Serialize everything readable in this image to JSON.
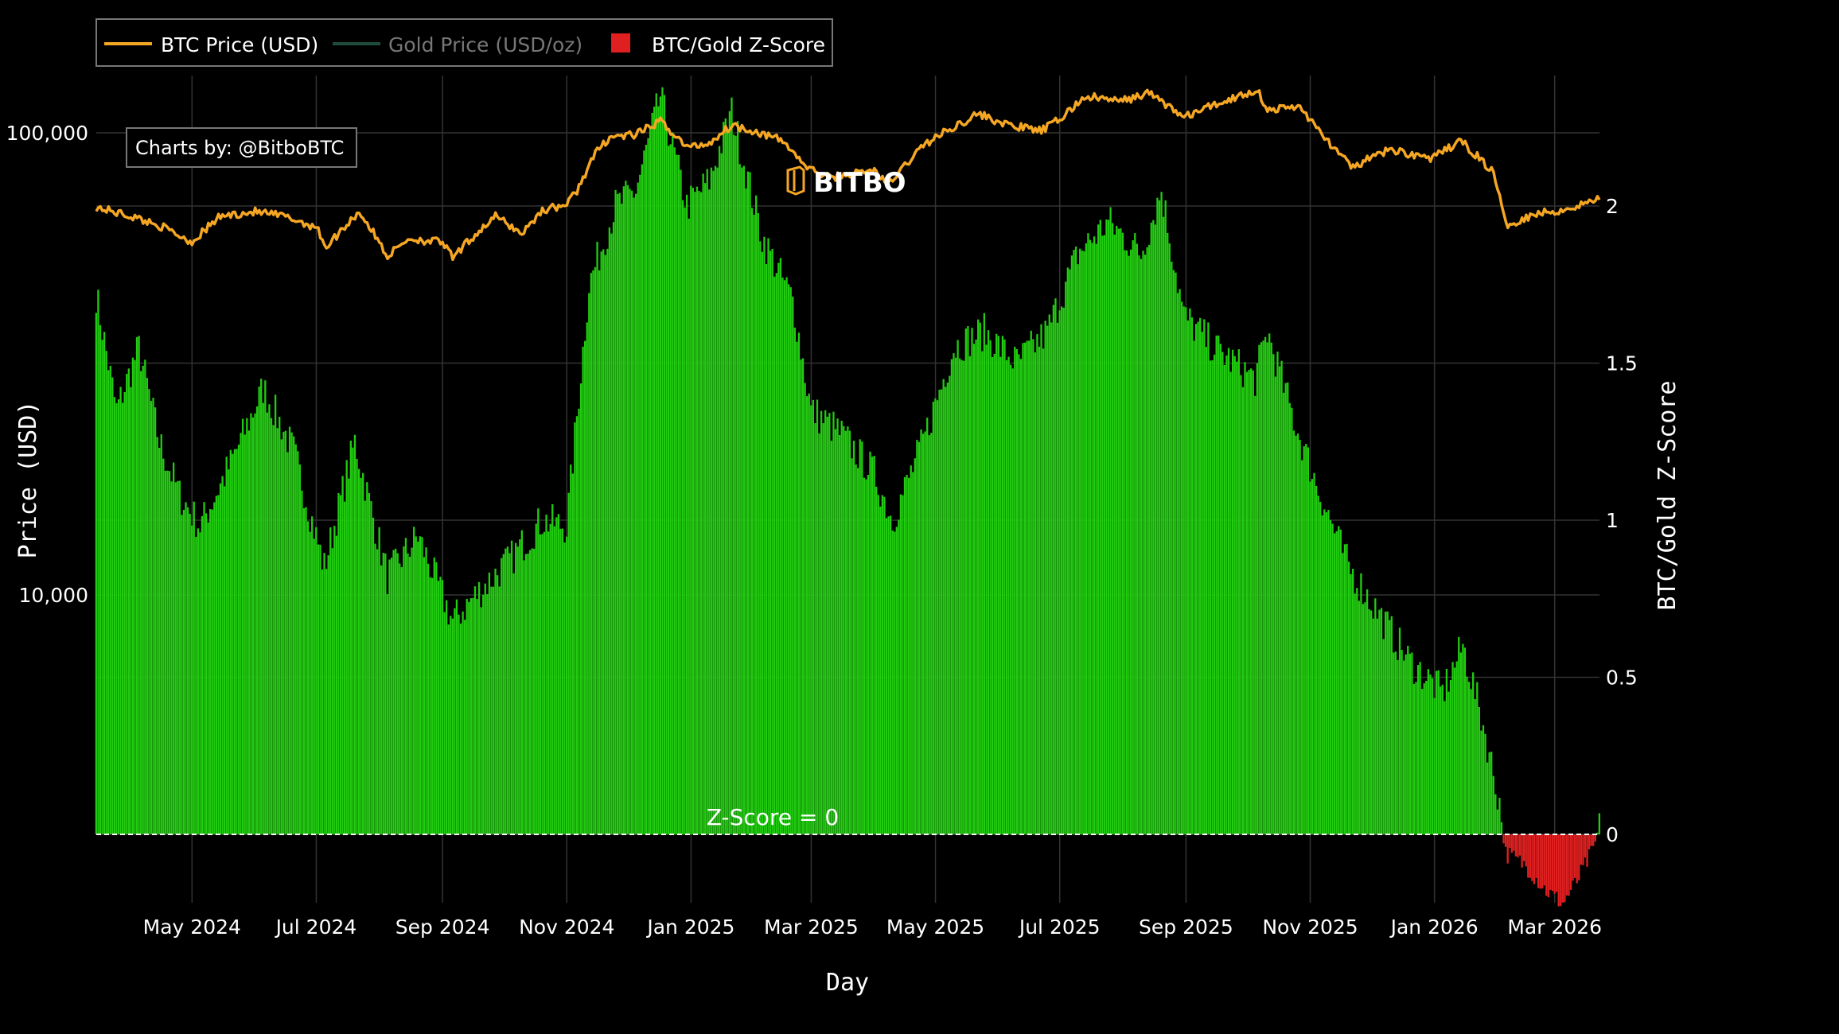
{
  "legend": {
    "btc_label": "BTC Price (USD)",
    "gold_label": "Gold Price (USD/oz)",
    "zscore_label": "BTC/Gold Z-Score"
  },
  "credit": "Charts by: @BitboBTC",
  "watermark": "BITBO",
  "zero_label": "Z-Score = 0",
  "colors": {
    "background": "#000000",
    "btc": "#f5a623",
    "gold": "#1f4d3c",
    "zscore_positive": "#22cc11",
    "zscore_negative": "#e02020",
    "grid": "#333333"
  },
  "chart_data": {
    "type": "line+bar",
    "xlabel": "Day",
    "ylabel_left": "Price (USD)",
    "ylabel_right": "BTC/Gold Z-Score",
    "x_range": [
      "2024-03-15",
      "2026-03-23"
    ],
    "x_ticks": [
      {
        "date": "2024-05-01",
        "label": "May 2024"
      },
      {
        "date": "2024-07-01",
        "label": "Jul 2024"
      },
      {
        "date": "2024-09-01",
        "label": "Sep 2024"
      },
      {
        "date": "2024-11-01",
        "label": "Nov 2024"
      },
      {
        "date": "2025-01-01",
        "label": "Jan 2025"
      },
      {
        "date": "2025-03-01",
        "label": "Mar 2025"
      },
      {
        "date": "2025-05-01",
        "label": "May 2025"
      },
      {
        "date": "2025-07-01",
        "label": "Jul 2025"
      },
      {
        "date": "2025-09-01",
        "label": "Sep 2025"
      },
      {
        "date": "2025-11-01",
        "label": "Nov 2025"
      },
      {
        "date": "2026-01-01",
        "label": "Jan 2026"
      },
      {
        "date": "2026-03-01",
        "label": "Mar 2026"
      }
    ],
    "y_left": {
      "scale": "log",
      "ticks": [
        {
          "value": 10000,
          "label": "10,000"
        },
        {
          "value": 100000,
          "label": "100,000"
        }
      ]
    },
    "y_right": {
      "range": [
        -0.23,
        2.42
      ],
      "ticks": [
        0,
        0.5,
        1,
        1.5,
        2
      ]
    },
    "btc_price": [
      [
        "2024-03-15",
        69000
      ],
      [
        "2024-04-01",
        66000
      ],
      [
        "2024-04-15",
        63000
      ],
      [
        "2024-05-01",
        58000
      ],
      [
        "2024-05-15",
        66000
      ],
      [
        "2024-06-01",
        67500
      ],
      [
        "2024-06-15",
        66000
      ],
      [
        "2024-07-01",
        62500
      ],
      [
        "2024-07-06",
        56500
      ],
      [
        "2024-07-22",
        67500
      ],
      [
        "2024-08-05",
        54000
      ],
      [
        "2024-08-15",
        59000
      ],
      [
        "2024-09-01",
        58000
      ],
      [
        "2024-09-06",
        53500
      ],
      [
        "2024-09-15",
        59000
      ],
      [
        "2024-09-27",
        66000
      ],
      [
        "2024-10-10",
        60500
      ],
      [
        "2024-10-20",
        68000
      ],
      [
        "2024-11-01",
        70000
      ],
      [
        "2024-11-06",
        75000
      ],
      [
        "2024-11-15",
        90000
      ],
      [
        "2024-11-22",
        98000
      ],
      [
        "2024-12-05",
        99000
      ],
      [
        "2024-12-17",
        106000
      ],
      [
        "2024-12-30",
        93000
      ],
      [
        "2025-01-10",
        95000
      ],
      [
        "2025-01-21",
        104000
      ],
      [
        "2025-02-01",
        101000
      ],
      [
        "2025-02-15",
        96000
      ],
      [
        "2025-02-27",
        84000
      ],
      [
        "2025-03-10",
        80000
      ],
      [
        "2025-04-01",
        83000
      ],
      [
        "2025-04-08",
        77000
      ],
      [
        "2025-04-25",
        94000
      ],
      [
        "2025-05-10",
        103000
      ],
      [
        "2025-05-22",
        110000
      ],
      [
        "2025-06-05",
        104000
      ],
      [
        "2025-06-22",
        101000
      ],
      [
        "2025-07-01",
        107000
      ],
      [
        "2025-07-14",
        120000
      ],
      [
        "2025-07-31",
        117000
      ],
      [
        "2025-08-14",
        122000
      ],
      [
        "2025-08-31",
        108000
      ],
      [
        "2025-09-15",
        115000
      ],
      [
        "2025-10-06",
        124000
      ],
      [
        "2025-10-11",
        112000
      ],
      [
        "2025-10-27",
        114000
      ],
      [
        "2025-11-05",
        101000
      ],
      [
        "2025-11-21",
        84000
      ],
      [
        "2025-12-10",
        92000
      ],
      [
        "2025-12-31",
        88000
      ],
      [
        "2026-01-14",
        96000
      ],
      [
        "2026-01-30",
        82000
      ],
      [
        "2026-02-05",
        63000
      ],
      [
        "2026-02-20",
        67000
      ],
      [
        "2026-03-05",
        68000
      ],
      [
        "2026-03-23",
        72000
      ]
    ],
    "zscore": [
      [
        "2024-03-15",
        1.72
      ],
      [
        "2024-03-25",
        1.35
      ],
      [
        "2024-04-05",
        1.55
      ],
      [
        "2024-04-15",
        1.25
      ],
      [
        "2024-04-25",
        1.08
      ],
      [
        "2024-05-05",
        0.98
      ],
      [
        "2024-05-20",
        1.18
      ],
      [
        "2024-06-05",
        1.42
      ],
      [
        "2024-06-20",
        1.22
      ],
      [
        "2024-07-05",
        0.85
      ],
      [
        "2024-07-20",
        1.25
      ],
      [
        "2024-08-05",
        0.82
      ],
      [
        "2024-08-20",
        0.95
      ],
      [
        "2024-09-06",
        0.68
      ],
      [
        "2024-09-20",
        0.78
      ],
      [
        "2024-10-05",
        0.88
      ],
      [
        "2024-10-20",
        1.0
      ],
      [
        "2024-11-01",
        0.98
      ],
      [
        "2024-11-12",
        1.75
      ],
      [
        "2024-11-25",
        2.0
      ],
      [
        "2024-12-05",
        2.05
      ],
      [
        "2024-12-17",
        2.35
      ],
      [
        "2024-12-30",
        2.0
      ],
      [
        "2025-01-10",
        2.08
      ],
      [
        "2025-01-21",
        2.3
      ],
      [
        "2025-02-05",
        1.9
      ],
      [
        "2025-02-20",
        1.7
      ],
      [
        "2025-03-01",
        1.35
      ],
      [
        "2025-03-15",
        1.28
      ],
      [
        "2025-04-01",
        1.15
      ],
      [
        "2025-04-10",
        1.0
      ],
      [
        "2025-04-25",
        1.25
      ],
      [
        "2025-05-10",
        1.55
      ],
      [
        "2025-05-25",
        1.6
      ],
      [
        "2025-06-10",
        1.5
      ],
      [
        "2025-06-25",
        1.6
      ],
      [
        "2025-07-10",
        1.85
      ],
      [
        "2025-07-25",
        1.95
      ],
      [
        "2025-08-10",
        1.85
      ],
      [
        "2025-08-20",
        2.05
      ],
      [
        "2025-08-31",
        1.65
      ],
      [
        "2025-09-15",
        1.55
      ],
      [
        "2025-10-05",
        1.45
      ],
      [
        "2025-10-11",
        1.6
      ],
      [
        "2025-10-25",
        1.3
      ],
      [
        "2025-11-05",
        1.1
      ],
      [
        "2025-11-20",
        0.85
      ],
      [
        "2025-12-05",
        0.7
      ],
      [
        "2025-12-20",
        0.55
      ],
      [
        "2026-01-05",
        0.45
      ],
      [
        "2026-01-15",
        0.6
      ],
      [
        "2026-01-25",
        0.35
      ],
      [
        "2026-02-02",
        0.1
      ],
      [
        "2026-02-05",
        -0.06
      ],
      [
        "2026-02-15",
        -0.1
      ],
      [
        "2026-02-25",
        -0.18
      ],
      [
        "2026-03-05",
        -0.22
      ],
      [
        "2026-03-12",
        -0.15
      ],
      [
        "2026-03-20",
        -0.05
      ],
      [
        "2026-03-23",
        0.02
      ]
    ],
    "gold_price": []
  }
}
